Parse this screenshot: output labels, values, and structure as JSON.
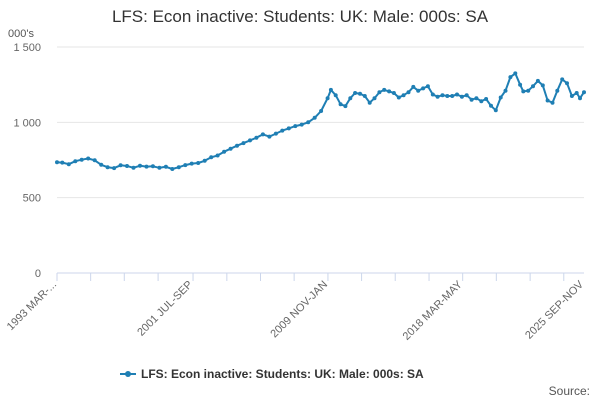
{
  "chart_data": {
    "type": "line",
    "title": "LFS: Econ inactive: Students: UK: Male: 000s: SA",
    "ylabel": "000's",
    "ylim": [
      0,
      1500
    ],
    "y_ticks": [
      0,
      500,
      1000,
      1500
    ],
    "y_tick_labels": [
      "0",
      "500",
      "1 000",
      "1 500"
    ],
    "x_range": [
      1993.17,
      2025.75
    ],
    "x_ticks": [
      {
        "x": 1993.17,
        "label": "1993 MAR-..."
      },
      {
        "x": 2001.58,
        "label": "2001 JUL-SEP"
      },
      {
        "x": 2009.92,
        "label": "2009 NOV-JAN"
      },
      {
        "x": 2018.25,
        "label": "2018 MAR-MAY"
      },
      {
        "x": 2025.75,
        "label": "2025 SEP-NOV"
      }
    ],
    "minor_ticks": [
      1993.17,
      1995.25,
      1997.33,
      1999.42,
      2001.58,
      2003.67,
      2005.75,
      2007.83,
      2009.92,
      2012.0,
      2014.08,
      2016.17,
      2018.25,
      2020.33,
      2022.42,
      2024.5
    ],
    "grid": true,
    "legend_position": "bottom",
    "series": [
      {
        "name": "LFS: Econ inactive: Students: UK: Male: 000s: SA",
        "color": "#1f7fb4",
        "x": [
          1993.17,
          1993.5,
          1993.9,
          1994.3,
          1994.7,
          1995.1,
          1995.5,
          1995.9,
          1996.3,
          1996.7,
          1997.1,
          1997.5,
          1997.9,
          1998.3,
          1998.7,
          1999.1,
          1999.5,
          1999.9,
          2000.3,
          2000.7,
          2001.1,
          2001.5,
          2001.9,
          2002.3,
          2002.7,
          2003.1,
          2003.5,
          2003.9,
          2004.3,
          2004.7,
          2005.1,
          2005.5,
          2005.9,
          2006.3,
          2006.7,
          2007.1,
          2007.5,
          2007.9,
          2008.3,
          2008.7,
          2009.1,
          2009.5,
          2009.9,
          2010.1,
          2010.4,
          2010.7,
          2011.0,
          2011.3,
          2011.6,
          2011.9,
          2012.2,
          2012.5,
          2012.8,
          2013.1,
          2013.4,
          2013.7,
          2014.0,
          2014.3,
          2014.6,
          2014.9,
          2015.2,
          2015.5,
          2015.8,
          2016.1,
          2016.4,
          2016.7,
          2017.0,
          2017.3,
          2017.6,
          2017.9,
          2018.2,
          2018.5,
          2018.8,
          2019.1,
          2019.4,
          2019.7,
          2020.0,
          2020.3,
          2020.6,
          2020.9,
          2021.2,
          2021.5,
          2021.8,
          2022.0,
          2022.3,
          2022.6,
          2022.9,
          2023.2,
          2023.5,
          2023.8,
          2024.1,
          2024.4,
          2024.7,
          2025.0,
          2025.3,
          2025.5,
          2025.75
        ],
        "values": [
          735,
          733,
          722,
          742,
          752,
          760,
          748,
          718,
          702,
          696,
          715,
          710,
          698,
          712,
          706,
          708,
          698,
          705,
          690,
          702,
          716,
          726,
          730,
          745,
          768,
          780,
          805,
          825,
          845,
          862,
          880,
          898,
          920,
          905,
          925,
          945,
          960,
          975,
          985,
          1000,
          1030,
          1075,
          1160,
          1215,
          1180,
          1120,
          1108,
          1160,
          1195,
          1190,
          1175,
          1130,
          1160,
          1200,
          1215,
          1205,
          1195,
          1165,
          1180,
          1200,
          1235,
          1210,
          1225,
          1240,
          1185,
          1170,
          1180,
          1175,
          1175,
          1185,
          1170,
          1180,
          1150,
          1160,
          1140,
          1155,
          1110,
          1080,
          1165,
          1210,
          1300,
          1325,
          1250,
          1205,
          1210,
          1240,
          1275,
          1245,
          1145,
          1130,
          1210,
          1285,
          1260,
          1175,
          1195,
          1160,
          1200
        ]
      }
    ]
  },
  "source_label": "Source:"
}
